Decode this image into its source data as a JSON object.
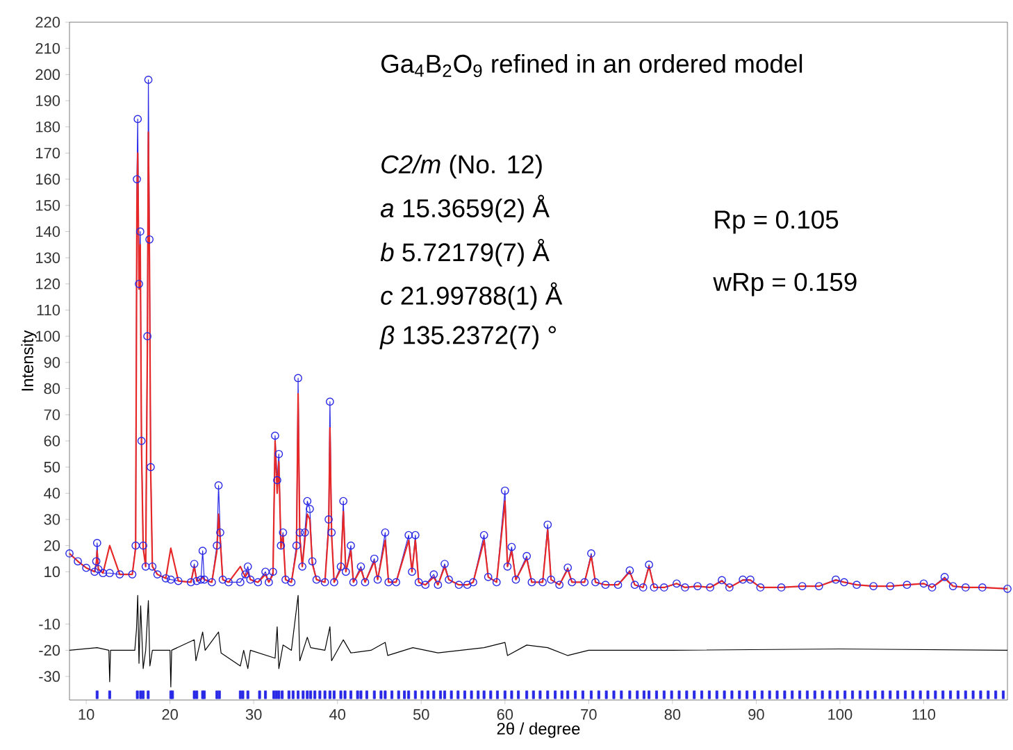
{
  "chart_data": {
    "type": "line",
    "title": "Ga$_{4}$B$_{2}$O$_{9}$ refined in an ordered model",
    "xlabel": "2θ / degree",
    "ylabel": "Intensity",
    "annotations": [
      "*C2/m* (No. 12)",
      "*a*   15.3659(2) Å",
      "*b*   5.72179(7) Å",
      "*c*   21.99788(1) Å",
      "*β*   135.2372(7) °",
      "Rp = 0.105",
      "wRp = 0.159"
    ],
    "xlim": [
      8,
      120
    ],
    "xticks": [
      10,
      20,
      30,
      40,
      50,
      60,
      70,
      80,
      90,
      100,
      110
    ],
    "ylim": [
      -39,
      220
    ],
    "yticks": [
      220,
      210,
      200,
      190,
      180,
      170,
      160,
      150,
      140,
      130,
      120,
      110,
      100,
      90,
      80,
      70,
      60,
      50,
      40,
      30,
      20,
      10,
      -10,
      -20,
      -30
    ],
    "x": [
      8,
      9,
      10,
      11,
      11.2,
      11.3,
      11.45,
      12,
      12.8,
      14,
      15.5,
      15.9,
      16.05,
      16.15,
      16.3,
      16.45,
      16.6,
      16.8,
      17.1,
      17.3,
      17.42,
      17.55,
      17.7,
      17.9,
      18.5,
      19.5,
      20.1,
      21,
      22.5,
      22.9,
      23.2,
      23.7,
      23.9,
      24.1,
      25,
      25.6,
      25.8,
      26,
      26.3,
      27,
      28.4,
      29,
      29.3,
      29.6,
      30.5,
      31.4,
      31.8,
      32.3,
      32.55,
      32.8,
      33,
      33.25,
      33.5,
      33.8,
      34.5,
      35.1,
      35.3,
      35.5,
      35.8,
      36.1,
      36.4,
      36.7,
      37,
      37.5,
      38.5,
      38.95,
      39.1,
      39.3,
      39.6,
      40.4,
      40.7,
      41,
      41.6,
      41.9,
      42.8,
      43.3,
      44.4,
      44.8,
      45.7,
      46.1,
      47,
      48.5,
      48.9,
      49.3,
      49.7,
      50.5,
      51.5,
      52,
      52.8,
      53.3,
      54.5,
      55.5,
      56.2,
      57.5,
      58,
      59,
      60,
      60.3,
      60.8,
      61.3,
      62.6,
      63.2,
      64.5,
      65.1,
      65.5,
      66.5,
      67.5,
      68,
      69.5,
      70.3,
      70.8,
      72,
      73.5,
      74.9,
      75.5,
      76.5,
      77.2,
      77.8,
      79,
      80.5,
      81.5,
      83,
      84.5,
      85.9,
      86.8,
      88.4,
      89.3,
      90.5,
      93,
      95.5,
      97.5,
      99.5,
      100.5,
      102,
      104,
      106,
      108,
      110,
      111,
      112.5,
      113.5,
      115,
      117,
      120
    ],
    "series": [
      {
        "type": "line",
        "color": "#2828e6",
        "marker": "circle",
        "values": [
          17,
          14,
          11.5,
          10,
          14,
          21,
          11,
          9.5,
          9.5,
          9,
          9,
          20,
          160,
          183,
          120,
          140,
          60,
          20,
          12,
          100,
          198,
          137,
          50,
          12,
          9,
          7.5,
          7,
          6.5,
          6,
          13,
          6.5,
          7,
          18,
          7,
          6,
          20,
          43,
          25,
          7,
          6,
          6,
          9,
          12,
          7,
          6,
          10,
          6,
          10,
          62,
          45,
          55,
          20,
          25,
          7,
          6,
          20,
          84,
          25,
          12,
          25,
          37,
          34,
          14,
          7,
          6,
          30,
          75,
          25,
          6,
          12,
          37,
          10,
          20,
          6,
          12,
          6,
          15,
          7,
          25,
          6,
          6,
          24,
          10,
          24,
          6,
          5,
          9,
          5,
          13,
          7,
          5,
          5,
          6,
          24,
          8,
          6,
          41,
          12,
          19.5,
          7,
          16,
          6,
          6,
          28,
          7,
          5,
          11.6,
          6,
          6,
          17,
          6,
          5,
          5,
          10.5,
          5,
          4,
          12.7,
          4,
          4,
          5.5,
          4,
          4.5,
          4,
          6.8,
          4,
          7,
          7,
          4,
          4,
          4.5,
          4.5,
          7,
          6,
          5,
          4.5,
          4.5,
          5,
          5.5,
          4,
          8,
          4.5,
          4,
          4,
          3.5
        ]
      },
      {
        "type": "line",
        "color": "#e62828",
        "marker": "none",
        "values": [
          17,
          14,
          11.5,
          10,
          13,
          18,
          11,
          9.5,
          20,
          9,
          9,
          19,
          150,
          170,
          118,
          135,
          58,
          19,
          12,
          95,
          178,
          130,
          48,
          12,
          9,
          7.5,
          19,
          6.5,
          6,
          12,
          6.5,
          7,
          8,
          7,
          6,
          18,
          32,
          22,
          7,
          6,
          12,
          8,
          10,
          7,
          6,
          9,
          6,
          9,
          60,
          40,
          52,
          19,
          24,
          7,
          6,
          18,
          78,
          23,
          12,
          22,
          32,
          30,
          13,
          7,
          6,
          27,
          65,
          24,
          6,
          11,
          33,
          10,
          18,
          6,
          11,
          6,
          14,
          7,
          22,
          6,
          6,
          22,
          10,
          22,
          6,
          5,
          8,
          5,
          12,
          7,
          5,
          5,
          6,
          22,
          8,
          6,
          37,
          12,
          18,
          7,
          15,
          6,
          6,
          26,
          7,
          5,
          11,
          6,
          6,
          16,
          6,
          5,
          5,
          10,
          5,
          4,
          12,
          4,
          4,
          5.5,
          4,
          4.5,
          4,
          6.5,
          4,
          6.8,
          6.8,
          4,
          4,
          4.5,
          4.5,
          6.8,
          6,
          5,
          4.5,
          4.5,
          5,
          5.5,
          4,
          7.5,
          4.5,
          4,
          4,
          3.5
        ]
      },
      {
        "type": "line",
        "color": "#000000",
        "marker": "none",
        "x": [
          8,
          11.3,
          12.7,
          12.8,
          12.9,
          15.8,
          16,
          16.15,
          16.3,
          16.5,
          16.8,
          17.1,
          17.42,
          17.6,
          17.9,
          20,
          20.1,
          20.2,
          22.9,
          23.1,
          23.9,
          24.2,
          25.8,
          26.1,
          28.4,
          28.8,
          29.3,
          29.6,
          32.55,
          32.8,
          33,
          33.5,
          34.5,
          35.3,
          35.5,
          36.4,
          36.8,
          38.5,
          39.1,
          39.3,
          40.7,
          41.6,
          44,
          45.7,
          46,
          49,
          52,
          57.5,
          60,
          60.3,
          62.6,
          65.1,
          67.5,
          70,
          80,
          100,
          120
        ],
        "values": [
          -20,
          -19,
          -20,
          -32,
          -20,
          -20,
          -12,
          1,
          -25,
          -3,
          -27,
          -20,
          -1,
          -26,
          -20,
          -20,
          -34,
          -20,
          -16,
          -24,
          -13,
          -20,
          -13,
          -21,
          -26,
          -20,
          -27,
          -20,
          -23,
          -11,
          -27,
          -18,
          -20,
          1,
          -24,
          -15,
          -19,
          -20,
          -11,
          -24,
          -16,
          -21,
          -20,
          -17,
          -22,
          -19,
          -21,
          -19,
          -17,
          -22,
          -18,
          -19,
          -22,
          -20,
          -20,
          -19.5,
          -20
        ]
      },
      {
        "type": "bar",
        "color": "#2828e6",
        "base": [
          -38.5,
          -38.5,
          -38.5,
          -38.5,
          -38.5,
          -38.5,
          -38.5,
          -38.5,
          -38.5,
          -38.5,
          -38.5,
          -38.5,
          -38.5,
          -38.5,
          -38.5,
          -38.5,
          -38.5,
          -38.5,
          -38.5,
          -38.5,
          -38.5,
          -38.5,
          -38.5,
          -38.5,
          -38.5,
          -38.5,
          -38.5,
          -38.5,
          -38.5,
          -38.5,
          -38.5,
          -38.5,
          -38.5,
          -38.5,
          -38.5,
          -38.5,
          -38.5,
          -38.5,
          -38.5,
          -38.5,
          -38.5,
          -38.5,
          -38.5,
          -38.5,
          -38.5,
          -38.5,
          -38.5,
          -38.5,
          -38.5,
          -38.5,
          -38.5,
          -38.5,
          -38.5,
          -38.5,
          -38.5,
          -38.5,
          -38.5,
          -38.5,
          -38.5,
          -38.5,
          -38.5,
          -38.5,
          -38.5,
          -38.5,
          -38.5,
          -38.5,
          -38.5,
          -38.5,
          -38.5,
          -38.5,
          -38.5,
          -38.5,
          -38.5,
          -38.5,
          -38.5,
          -38.5,
          -38.5,
          -38.5,
          -38.5,
          -38.5,
          -38.5,
          -38.5,
          -38.5,
          -38.5,
          -38.5,
          -38.5,
          -38.5,
          -38.5,
          -38.5,
          -38.5,
          -38.5,
          -38.5,
          -38.5,
          -38.5,
          -38.5,
          -38.5,
          -38.5,
          -38.5,
          -38.5,
          -38.5,
          -38.5,
          -38.5,
          -38.5,
          -38.5,
          -38.5,
          -38.5,
          -38.5,
          -38.5,
          -38.5,
          -38.5,
          -38.5,
          -38.5,
          -38.5,
          -38.5,
          -38.5,
          -38.5,
          -38.5,
          -38.5,
          -38.5,
          -38.5,
          -38.5,
          -38.5,
          -38.5,
          -38.5,
          -38.5,
          -38.5,
          -38.5,
          -38.5,
          -38.5
        ],
        "x": [
          11.3,
          12.8,
          16.1,
          16.5,
          16.8,
          17.4,
          20.1,
          20.3,
          22.9,
          23.2,
          23.9,
          24.1,
          25.6,
          25.9,
          28.4,
          28.7,
          29.3,
          30.7,
          31.4,
          32.4,
          32.7,
          33,
          33.4,
          34.2,
          34.7,
          35.3,
          35.9,
          36.4,
          36.8,
          37.3,
          37.9,
          38.5,
          39.1,
          39.6,
          40.4,
          40.9,
          41.6,
          42.4,
          42.8,
          43.5,
          44.4,
          45.2,
          45.7,
          46.5,
          47.3,
          48,
          48.5,
          49.3,
          50.1,
          50.8,
          51.5,
          52.3,
          52.8,
          53.6,
          54.4,
          55.2,
          56,
          56.8,
          57.5,
          58.3,
          59.1,
          60,
          60.8,
          61.6,
          62.6,
          63.4,
          64.2,
          65.1,
          66,
          66.8,
          67.5,
          68.4,
          69.3,
          70.3,
          71.2,
          72.1,
          73,
          73.9,
          74.9,
          75.8,
          76.6,
          77.2,
          78.1,
          79,
          79.9,
          80.8,
          81.7,
          82.6,
          83.5,
          84.4,
          85.3,
          86.2,
          87.1,
          88,
          88.9,
          89.8,
          90.7,
          91.6,
          92.5,
          93.4,
          94.3,
          95.2,
          96.1,
          97,
          97.9,
          98.8,
          99.7,
          100.6,
          101.5,
          102.4,
          103.3,
          104.2,
          105.1,
          106,
          106.9,
          107.8,
          108.7,
          109.6,
          110.5,
          111.4,
          112.3,
          113.2,
          114.1,
          115,
          115.9,
          116.8,
          117.7,
          118.6,
          119.5
        ],
        "values": [
          3,
          3,
          3,
          3,
          3,
          3,
          3,
          3,
          3,
          3,
          3,
          3,
          3,
          3,
          3,
          3,
          3,
          3,
          3,
          3,
          3,
          3,
          3,
          3,
          3,
          3,
          3,
          3,
          3,
          3,
          3,
          3,
          3,
          3,
          3,
          3,
          3,
          3,
          3,
          3,
          3,
          3,
          3,
          3,
          3,
          3,
          3,
          3,
          3,
          3,
          3,
          3,
          3,
          3,
          3,
          3,
          3,
          3,
          3,
          3,
          3,
          3,
          3,
          3,
          3,
          3,
          3,
          3,
          3,
          3,
          3,
          3,
          3,
          3,
          3,
          3,
          3,
          3,
          3,
          3,
          3,
          3,
          3,
          3,
          3,
          3,
          3,
          3,
          3,
          3,
          3,
          3,
          3,
          3,
          3,
          3,
          3,
          3,
          3,
          3,
          3,
          3,
          3,
          3,
          3,
          3,
          3,
          3,
          3,
          3,
          3,
          3,
          3,
          3,
          3,
          3,
          3,
          3,
          3,
          3,
          3,
          3,
          3,
          3,
          3,
          3,
          3,
          3,
          3
        ]
      }
    ]
  }
}
